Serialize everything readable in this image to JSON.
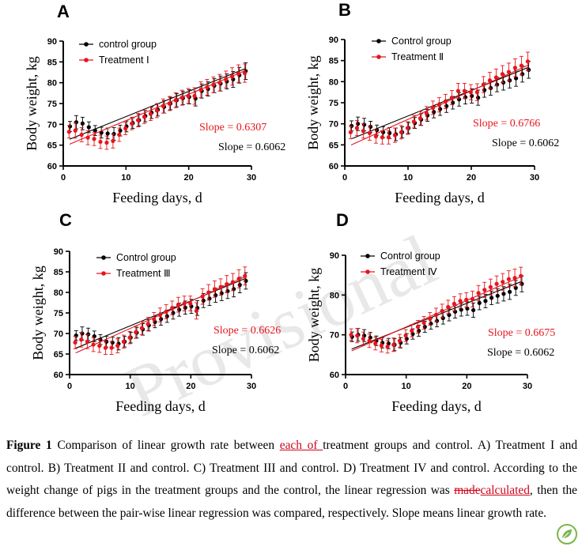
{
  "colors": {
    "control": "#000000",
    "treatment": "#e8141c",
    "watermark": "#d6d6d6"
  },
  "watermark": "Provisional",
  "chart_data": [
    {
      "type": "scatter",
      "panel_label": "A",
      "xlabel": "Feeding days, d",
      "ylabel": "Body weight, kg",
      "xlim": [
        0,
        30
      ],
      "ylim": [
        60,
        90
      ],
      "xticks": [
        0,
        10,
        20,
        30
      ],
      "yticks": [
        60,
        65,
        70,
        75,
        80,
        85,
        90
      ],
      "grid": false,
      "legend_position": "top-left",
      "x": [
        1,
        2,
        3,
        4,
        5,
        6,
        7,
        8,
        9,
        10,
        11,
        12,
        13,
        14,
        15,
        16,
        17,
        18,
        19,
        20,
        21,
        22,
        23,
        24,
        25,
        26,
        27,
        28,
        29
      ],
      "series": [
        {
          "name": "control group",
          "color": "#000000",
          "values": [
            69.5,
            70.5,
            70.2,
            69.3,
            68.5,
            68.0,
            67.8,
            67.7,
            68.5,
            69.5,
            70.3,
            71.0,
            72.0,
            72.8,
            73.5,
            74.2,
            75.0,
            75.8,
            76.3,
            76.6,
            76.2,
            78.0,
            78.5,
            79.3,
            79.8,
            80.3,
            80.8,
            81.8,
            82.8
          ],
          "errors": [
            1.2,
            1.6,
            1.5,
            1.3,
            1.2,
            1.3,
            1.3,
            1.5,
            1.3,
            1.3,
            1.3,
            1.4,
            1.4,
            1.4,
            1.5,
            1.5,
            1.5,
            1.6,
            1.6,
            1.7,
            1.8,
            1.7,
            1.7,
            1.7,
            1.8,
            1.8,
            1.9,
            1.9,
            2.0
          ],
          "slope_label": "Slope = 0.6062",
          "fit": {
            "slope": 0.6062,
            "intercept": 65.8
          }
        },
        {
          "name": "Treatment Ⅰ",
          "color": "#e8141c",
          "values": [
            68.2,
            68.5,
            67.5,
            66.8,
            66.5,
            65.8,
            65.6,
            66.0,
            67.5,
            69.0,
            70.2,
            71.0,
            71.8,
            72.5,
            73.3,
            74.4,
            75.0,
            75.8,
            76.4,
            76.8,
            76.8,
            78.3,
            78.9,
            79.5,
            80.0,
            80.8,
            81.5,
            82.2,
            82.3
          ],
          "errors": [
            1.5,
            1.8,
            1.7,
            1.7,
            1.6,
            1.6,
            1.6,
            1.7,
            1.6,
            1.5,
            1.5,
            1.6,
            1.6,
            1.6,
            1.7,
            1.7,
            1.7,
            1.8,
            1.8,
            1.8,
            2.0,
            1.9,
            1.9,
            1.9,
            2.0,
            2.0,
            2.1,
            2.1,
            2.2
          ],
          "slope_label": "Slope = 0.6307",
          "fit": {
            "slope": 0.6307,
            "intercept": 64.6
          }
        }
      ]
    },
    {
      "type": "scatter",
      "panel_label": "B",
      "xlabel": "Feeding days, d",
      "ylabel": "Body weight, kg",
      "xlim": [
        0,
        30
      ],
      "ylim": [
        60,
        90
      ],
      "xticks": [
        0,
        10,
        20,
        30
      ],
      "yticks": [
        60,
        65,
        70,
        75,
        80,
        85,
        90
      ],
      "grid": false,
      "legend_position": "top-left",
      "x": [
        1,
        2,
        3,
        4,
        5,
        6,
        7,
        8,
        9,
        10,
        11,
        12,
        13,
        14,
        15,
        16,
        17,
        18,
        19,
        20,
        21,
        22,
        23,
        24,
        25,
        26,
        27,
        28,
        29
      ],
      "series": [
        {
          "name": "Control group",
          "color": "#000000",
          "values": [
            69.5,
            70.0,
            69.8,
            69.3,
            68.5,
            68.0,
            67.8,
            67.5,
            68.0,
            69.0,
            70.2,
            71.0,
            72.0,
            72.8,
            73.5,
            74.2,
            75.0,
            75.8,
            76.3,
            76.6,
            76.2,
            78.0,
            78.5,
            79.3,
            79.8,
            80.3,
            80.8,
            81.8,
            82.8
          ],
          "errors": [
            1.2,
            1.6,
            1.5,
            1.3,
            1.2,
            1.3,
            1.3,
            1.5,
            1.3,
            1.3,
            1.3,
            1.4,
            1.4,
            1.4,
            1.5,
            1.5,
            1.5,
            1.6,
            1.6,
            1.7,
            1.8,
            1.7,
            1.7,
            1.7,
            1.8,
            1.8,
            1.9,
            1.9,
            2.0
          ],
          "slope_label": "Slope = 0.6062",
          "fit": {
            "slope": 0.6062,
            "intercept": 65.8
          }
        },
        {
          "name": "Treatment Ⅱ",
          "color": "#e8141c",
          "values": [
            68.0,
            69.0,
            68.3,
            67.8,
            67.0,
            66.8,
            66.8,
            67.3,
            68.0,
            69.0,
            70.5,
            71.3,
            72.5,
            73.8,
            74.5,
            75.3,
            76.2,
            77.8,
            77.8,
            77.5,
            77.5,
            79.3,
            80.3,
            81.0,
            81.8,
            82.3,
            83.3,
            83.8,
            84.8
          ],
          "errors": [
            1.5,
            1.8,
            1.7,
            1.7,
            1.6,
            1.6,
            1.6,
            1.7,
            1.6,
            1.5,
            1.5,
            1.6,
            1.6,
            1.6,
            1.7,
            1.7,
            1.7,
            1.8,
            1.8,
            1.8,
            2.0,
            1.9,
            1.9,
            2.0,
            2.0,
            2.1,
            2.1,
            2.2,
            2.2
          ],
          "slope_label": "Slope = 0.6766",
          "fit": {
            "slope": 0.6766,
            "intercept": 64.3
          }
        }
      ]
    },
    {
      "type": "scatter",
      "panel_label": "C",
      "xlabel": "Feeding days, d",
      "ylabel": "Body weight, kg",
      "xlim": [
        0,
        30
      ],
      "ylim": [
        60,
        90
      ],
      "xticks": [
        0,
        10,
        20,
        30
      ],
      "yticks": [
        60,
        65,
        70,
        75,
        80,
        85,
        90
      ],
      "grid": false,
      "legend_position": "top-left",
      "x": [
        1,
        2,
        3,
        4,
        5,
        6,
        7,
        8,
        9,
        10,
        11,
        12,
        13,
        14,
        15,
        16,
        17,
        18,
        19,
        20,
        21,
        22,
        23,
        24,
        25,
        26,
        27,
        28,
        29
      ],
      "series": [
        {
          "name": "Control group",
          "color": "#000000",
          "values": [
            69.5,
            70.0,
            69.8,
            69.3,
            68.5,
            68.0,
            67.8,
            67.5,
            68.0,
            69.0,
            70.2,
            71.0,
            72.0,
            72.8,
            73.5,
            74.2,
            75.0,
            75.8,
            76.3,
            76.6,
            76.2,
            78.0,
            78.5,
            79.3,
            79.8,
            80.3,
            80.8,
            81.8,
            82.8
          ],
          "errors": [
            1.2,
            1.6,
            1.5,
            1.3,
            1.2,
            1.3,
            1.3,
            1.5,
            1.3,
            1.3,
            1.3,
            1.4,
            1.4,
            1.4,
            1.5,
            1.5,
            1.5,
            1.6,
            1.6,
            1.7,
            1.8,
            1.7,
            1.7,
            1.7,
            1.8,
            1.8,
            1.9,
            1.9,
            2.0
          ],
          "slope_label": "Slope = 0.6062",
          "fit": {
            "slope": 0.6062,
            "intercept": 65.8
          }
        },
        {
          "name": "Treatment Ⅲ",
          "color": "#e8141c",
          "values": [
            67.8,
            68.5,
            68.0,
            67.3,
            67.0,
            66.5,
            66.5,
            67.0,
            68.0,
            69.0,
            70.3,
            71.3,
            72.3,
            73.5,
            74.5,
            75.3,
            76.2,
            77.0,
            77.3,
            77.3,
            75.5,
            79.0,
            80.0,
            80.8,
            81.3,
            82.0,
            82.5,
            83.3,
            84.0
          ],
          "errors": [
            1.5,
            1.8,
            1.7,
            1.7,
            1.6,
            1.6,
            1.6,
            1.7,
            1.6,
            1.5,
            1.5,
            1.6,
            1.6,
            1.6,
            1.7,
            1.7,
            1.7,
            1.8,
            1.8,
            1.8,
            2.0,
            1.9,
            1.9,
            2.0,
            2.0,
            2.1,
            2.1,
            2.2,
            2.2
          ],
          "slope_label": "Slope = 0.6626",
          "fit": {
            "slope": 0.6626,
            "intercept": 64.6
          }
        }
      ]
    },
    {
      "type": "scatter",
      "panel_label": "D",
      "xlabel": "Feeding days, d",
      "ylabel": "Body weight, kg",
      "xlim": [
        0,
        30
      ],
      "ylim": [
        60,
        90
      ],
      "xticks": [
        0,
        10,
        20,
        30
      ],
      "yticks": [
        60,
        70,
        80,
        90
      ],
      "grid": false,
      "legend_position": "top-left",
      "x": [
        1,
        2,
        3,
        4,
        5,
        6,
        7,
        8,
        9,
        10,
        11,
        12,
        13,
        14,
        15,
        16,
        17,
        18,
        19,
        20,
        21,
        22,
        23,
        24,
        25,
        26,
        27,
        28,
        29
      ],
      "series": [
        {
          "name": "Control group",
          "color": "#000000",
          "values": [
            69.5,
            70.0,
            69.8,
            69.3,
            68.5,
            68.0,
            67.8,
            67.5,
            68.0,
            69.0,
            70.2,
            71.0,
            72.0,
            72.8,
            73.5,
            74.2,
            75.0,
            75.8,
            76.3,
            76.6,
            76.2,
            78.0,
            78.5,
            79.3,
            79.8,
            80.3,
            80.8,
            81.8,
            82.8
          ],
          "errors": [
            1.2,
            1.6,
            1.5,
            1.3,
            1.2,
            1.3,
            1.3,
            1.5,
            1.3,
            1.3,
            1.3,
            1.4,
            1.4,
            1.4,
            1.5,
            1.5,
            1.5,
            1.6,
            1.6,
            1.7,
            1.8,
            1.7,
            1.7,
            1.7,
            1.8,
            1.8,
            1.9,
            1.9,
            2.0
          ],
          "slope_label": "Slope = 0.6062",
          "fit": {
            "slope": 0.6062,
            "intercept": 65.8
          }
        },
        {
          "name": "Treatment Ⅳ",
          "color": "#e8141c",
          "values": [
            70.0,
            69.8,
            69.0,
            68.5,
            67.8,
            67.3,
            67.0,
            67.5,
            68.5,
            69.8,
            71.0,
            72.0,
            73.0,
            74.0,
            75.0,
            76.0,
            77.0,
            77.8,
            78.5,
            78.8,
            79.0,
            80.5,
            81.3,
            82.0,
            82.8,
            83.3,
            84.0,
            84.3,
            84.8
          ],
          "errors": [
            1.5,
            1.8,
            1.7,
            1.7,
            1.6,
            1.6,
            1.6,
            1.7,
            1.6,
            1.5,
            1.5,
            1.6,
            1.6,
            1.6,
            1.7,
            1.7,
            1.7,
            1.8,
            1.8,
            1.8,
            2.0,
            1.9,
            1.9,
            2.0,
            2.0,
            2.1,
            2.1,
            2.2,
            2.2
          ],
          "slope_label": "Slope = 0.6675",
          "fit": {
            "slope": 0.6675,
            "intercept": 65.3
          }
        }
      ]
    }
  ],
  "caption": {
    "label": "Figure 1",
    "seg1": " Comparison of linear growth rate between ",
    "ins1": "each of ",
    "seg2": "treatment groups and control. A) Treatment I and control. B) Treatment II and control. C) Treatment III and control. D) Treatment IV and control. According to the weight change of pigs in the treatment groups and the control, the linear regression was ",
    "del1": "made",
    "ins2": "calculated",
    "seg3": ", then the difference between the pair-wise linear regression was compared, respectively. Slope means linear growth rate."
  }
}
